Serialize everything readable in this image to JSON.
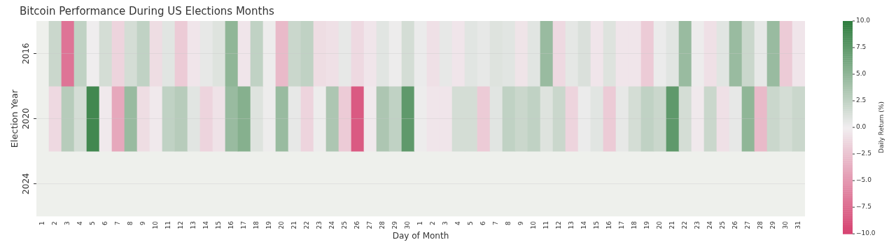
{
  "chart_data": {
    "type": "heatmap",
    "title": "Bitcoin Performance During US Elections Months",
    "xlabel": "Day of Month",
    "ylabel": "Election Year",
    "clabel": "Daily Return (%)",
    "categories": [
      "1",
      "2",
      "3",
      "4",
      "5",
      "6",
      "7",
      "8",
      "9",
      "10",
      "11",
      "12",
      "13",
      "14",
      "15",
      "16",
      "17",
      "18",
      "19",
      "20",
      "21",
      "22",
      "23",
      "24",
      "25",
      "26",
      "27",
      "28",
      "29",
      "30",
      "1",
      "2",
      "3",
      "4",
      "5",
      "6",
      "7",
      "8",
      "9",
      "10",
      "11",
      "12",
      "13",
      "14",
      "15",
      "16",
      "17",
      "18",
      "19",
      "20",
      "21",
      "22",
      "23",
      "24",
      "25",
      "26",
      "27",
      "28",
      "29",
      "30",
      "31"
    ],
    "y_categories": [
      "2016",
      "2020",
      "2024"
    ],
    "cells": [
      [
        null,
        2,
        -7,
        2.5,
        0.1,
        1.5,
        -1.5,
        1.5,
        2.5,
        -1,
        0.8,
        -2,
        -0.5,
        0.5,
        1,
        5,
        -0.5,
        2.5,
        0.2,
        -3,
        2,
        2.5,
        -1,
        -0.8,
        0.5,
        -1.2,
        -0.5,
        0.8,
        0.2,
        1.5,
        0.3,
        -0.8,
        0.5,
        -0.5,
        0.8,
        0.5,
        1,
        0.8,
        -0.6,
        0.8,
        4.5,
        -1.2,
        0.6,
        1.2,
        -0.5,
        1,
        -0.5,
        -0.5,
        -2,
        0.3,
        0.8,
        4.5,
        0.2,
        -0.8,
        0.8,
        4.5,
        2,
        0.5,
        4.5,
        -2,
        -0.5
      ],
      [
        null,
        -1.2,
        3,
        1.5,
        9,
        -0.3,
        -4,
        4.5,
        -1,
        -0.3,
        2.5,
        3,
        0.8,
        -1.5,
        -0.7,
        4.5,
        5.5,
        1,
        0.2,
        4.5,
        0.5,
        -1.5,
        0.2,
        3.5,
        -2,
        -8.5,
        -0.3,
        3.5,
        2.5,
        7.5,
        0.2,
        -0.5,
        -0.5,
        1.5,
        1.5,
        -2,
        0.8,
        2.5,
        2,
        2.5,
        1,
        2,
        -1.5,
        0.3,
        0.8,
        -2,
        0.5,
        1.5,
        2.5,
        2,
        7.5,
        1.5,
        -0.3,
        2,
        -0.8,
        0.5,
        5,
        -3,
        2,
        1.5,
        2
      ],
      [
        null,
        null,
        null,
        null,
        null,
        null,
        null,
        null,
        null,
        null,
        null,
        null,
        null,
        null,
        null,
        null,
        null,
        null,
        null,
        null,
        null,
        null,
        null,
        null,
        null,
        null,
        null,
        null,
        null,
        null,
        null,
        null,
        null,
        null,
        null,
        null,
        null,
        null,
        null,
        null,
        null,
        null,
        null,
        null,
        null,
        null,
        null,
        null,
        null,
        null,
        null,
        null,
        null,
        null,
        null,
        null,
        null,
        null,
        null,
        null,
        null
      ]
    ],
    "clim": [
      -10,
      10
    ],
    "cticks": [
      {
        "value": -10,
        "label": "−10.0"
      },
      {
        "value": -7.5,
        "label": "−7.5"
      },
      {
        "value": -5,
        "label": "−5.0"
      },
      {
        "value": -2.5,
        "label": "−2.5"
      },
      {
        "value": 0,
        "label": "0.0"
      },
      {
        "value": 2.5,
        "label": "2.5"
      },
      {
        "value": 5,
        "label": "5.0"
      },
      {
        "value": 7.5,
        "label": "7.5"
      },
      {
        "value": 10,
        "label": "10.0"
      }
    ],
    "grid": "y"
  }
}
